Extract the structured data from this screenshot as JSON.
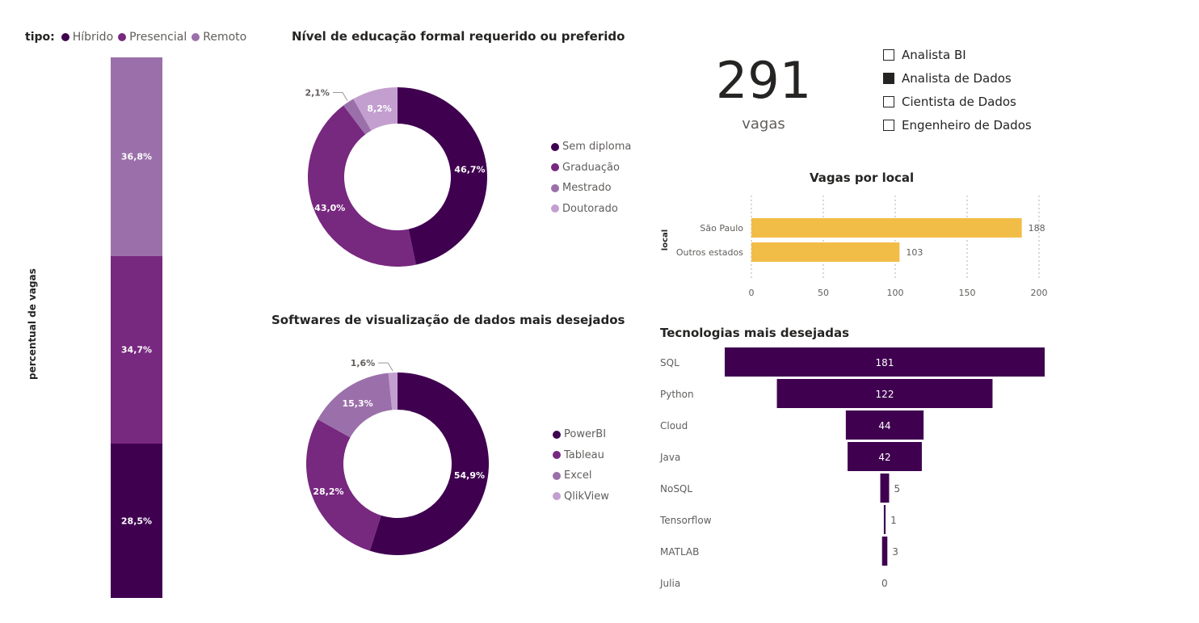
{
  "colors": {
    "hibrido": "#3f0050",
    "presencial": "#77287f",
    "remoto": "#9b70aa",
    "light": "#c39fd0",
    "bar": "#f2bd47",
    "funnel": "#3f0050"
  },
  "tipo_legend": {
    "title": "tipo:",
    "items": [
      "Híbrido",
      "Presencial",
      "Remoto"
    ]
  },
  "stacked": {
    "ylabel": "percentual de vagas",
    "chart_data": {
      "type": "bar",
      "categories": [
        ""
      ],
      "series": [
        {
          "name": "Híbrido",
          "values": [
            28.5
          ],
          "label": "28,5%"
        },
        {
          "name": "Presencial",
          "values": [
            34.7
          ],
          "label": "34,7%"
        },
        {
          "name": "Remoto",
          "values": [
            36.8
          ],
          "label": "36,8%"
        }
      ],
      "ylim": [
        0,
        100
      ]
    }
  },
  "educacao": {
    "title": "Nível de educação formal requerido ou preferido",
    "chart_data": {
      "type": "pie",
      "categories": [
        "Sem diploma",
        "Graduação",
        "Mestrado",
        "Doutorado"
      ],
      "values": [
        46.7,
        43.0,
        2.1,
        8.2
      ],
      "labels": [
        "46,7%",
        "43,0%",
        "2,1%",
        "8,2%"
      ]
    }
  },
  "softwares": {
    "title": "Softwares de visualização de dados mais desejados",
    "chart_data": {
      "type": "pie",
      "categories": [
        "PowerBI",
        "Tableau",
        "Excel",
        "QlikView"
      ],
      "values": [
        54.9,
        28.2,
        15.3,
        1.6
      ],
      "labels": [
        "54,9%",
        "28,2%",
        "15,3%",
        "1,6%"
      ]
    }
  },
  "kpi": {
    "value": "291",
    "label": "vagas"
  },
  "slicer": {
    "items": [
      {
        "label": "Analista BI",
        "checked": false
      },
      {
        "label": "Analista de Dados",
        "checked": true
      },
      {
        "label": "Cientista de Dados",
        "checked": false
      },
      {
        "label": "Engenheiro de Dados",
        "checked": false
      }
    ]
  },
  "local": {
    "title": "Vagas por local",
    "chart_data": {
      "type": "bar",
      "orientation": "horizontal",
      "categories": [
        "São Paulo",
        "Outros estados"
      ],
      "values": [
        188,
        103
      ],
      "ylabel": "local",
      "xlim": [
        0,
        200
      ],
      "xticks": [
        0,
        50,
        100,
        150,
        200
      ],
      "grid": true
    }
  },
  "tecnologias": {
    "title": "Tecnologias mais desejadas",
    "chart_data": {
      "type": "bar",
      "orientation": "funnel",
      "categories": [
        "SQL",
        "Python",
        "Cloud",
        "Java",
        "NoSQL",
        "Tensorflow",
        "MATLAB",
        "Julia"
      ],
      "values": [
        181,
        122,
        44,
        42,
        5,
        1,
        3,
        0
      ]
    }
  }
}
